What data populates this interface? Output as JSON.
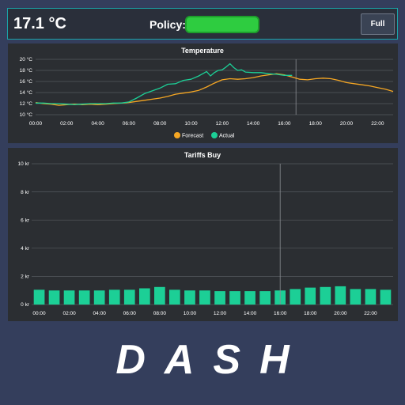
{
  "header": {
    "temperature": "17.1 °C",
    "policy_label": "Policy:",
    "policy_color": "#2ecc40",
    "full_button": "Full"
  },
  "footer": {
    "logo_text": "DASH"
  },
  "chart_data": [
    {
      "type": "line",
      "title": "Temperature",
      "xlabel": "",
      "ylabel": "",
      "x_range": [
        0,
        23
      ],
      "ylim": [
        10,
        20
      ],
      "y_ticks": [
        10,
        12,
        14,
        16,
        18,
        20
      ],
      "y_tick_labels": [
        "10 °C",
        "12 °C",
        "14 °C",
        "16 °C",
        "18 °C",
        "20 °C"
      ],
      "x_ticks": [
        0,
        2,
        4,
        6,
        8,
        10,
        12,
        14,
        16,
        18,
        20,
        22
      ],
      "x_tick_labels": [
        "00:00",
        "02:00",
        "04:00",
        "06:00",
        "08:00",
        "10:00",
        "12:00",
        "14:00",
        "16:00",
        "18:00",
        "20:00",
        "22:00"
      ],
      "now_marker": 16.75,
      "legend": {
        "position": "bottom",
        "entries": [
          "Forecast",
          "Actual"
        ]
      },
      "grid": true,
      "series": [
        {
          "name": "Forecast",
          "color": "#f5a623",
          "x": [
            0,
            0.5,
            1,
            1.5,
            2,
            2.5,
            3,
            3.5,
            4,
            4.5,
            5,
            5.5,
            6,
            6.5,
            7,
            7.5,
            8,
            8.5,
            9,
            9.5,
            10,
            10.5,
            11,
            11.5,
            12,
            12.5,
            13,
            13.5,
            14,
            14.5,
            15,
            15.5,
            16,
            16.5,
            17,
            17.5,
            18,
            18.5,
            19,
            19.5,
            20,
            20.5,
            21,
            21.5,
            22,
            22.5,
            23
          ],
          "y": [
            12.2,
            12.0,
            11.9,
            11.7,
            11.8,
            11.9,
            11.8,
            11.9,
            11.8,
            11.9,
            12.0,
            12.1,
            12.2,
            12.4,
            12.6,
            12.8,
            13.0,
            13.3,
            13.7,
            13.9,
            14.1,
            14.4,
            15.0,
            15.7,
            16.3,
            16.5,
            16.4,
            16.5,
            16.7,
            17.0,
            17.2,
            17.4,
            17.2,
            16.8,
            16.4,
            16.3,
            16.5,
            16.6,
            16.5,
            16.2,
            15.8,
            15.6,
            15.4,
            15.2,
            14.9,
            14.6,
            14.2
          ]
        },
        {
          "name": "Actual",
          "color": "#1ccf96",
          "x": [
            0,
            0.5,
            1,
            1.5,
            2,
            2.5,
            3,
            3.5,
            4,
            4.5,
            5,
            5.5,
            6,
            6.5,
            7,
            7.5,
            8,
            8.5,
            9,
            9.5,
            10,
            10.5,
            11,
            11.25,
            11.5,
            11.75,
            12,
            12.25,
            12.5,
            12.75,
            13,
            13.25,
            13.5,
            14,
            14.5,
            15,
            15.5,
            16,
            16.5
          ],
          "y": [
            12.1,
            12.1,
            12.0,
            12.0,
            11.9,
            11.8,
            11.9,
            12.0,
            12.0,
            12.0,
            12.1,
            12.1,
            12.3,
            13.0,
            13.8,
            14.3,
            14.8,
            15.5,
            15.6,
            16.2,
            16.4,
            17.0,
            17.8,
            17.0,
            17.6,
            18.0,
            18.1,
            18.6,
            19.2,
            18.5,
            18.0,
            18.1,
            17.7,
            17.6,
            17.6,
            17.4,
            17.3,
            17.1,
            17.1
          ]
        }
      ]
    },
    {
      "type": "bar",
      "title": "Tariffs Buy",
      "xlabel": "",
      "ylabel": "",
      "ylim": [
        0,
        10
      ],
      "y_ticks": [
        0,
        2,
        4,
        6,
        8,
        10
      ],
      "y_tick_labels": [
        "0 kr",
        "2 kr",
        "4 kr",
        "6 kr",
        "8 kr",
        "10 kr"
      ],
      "x_ticks": [
        0,
        2,
        4,
        6,
        8,
        10,
        12,
        14,
        16,
        18,
        20,
        22
      ],
      "x_tick_labels": [
        "00:00",
        "02:00",
        "04:00",
        "06:00",
        "08:00",
        "10:00",
        "12:00",
        "14:00",
        "16:00",
        "18:00",
        "20:00",
        "22:00"
      ],
      "now_marker": 16,
      "grid": true,
      "color": "#1ccf96",
      "categories": [
        0,
        1,
        2,
        3,
        4,
        5,
        6,
        7,
        8,
        9,
        10,
        11,
        12,
        13,
        14,
        15,
        16,
        17,
        18,
        19,
        20,
        21,
        22,
        23
      ],
      "values": [
        1.05,
        1.0,
        1.0,
        1.0,
        1.0,
        1.05,
        1.05,
        1.15,
        1.25,
        1.05,
        1.0,
        1.0,
        0.95,
        0.95,
        0.95,
        0.95,
        1.0,
        1.1,
        1.2,
        1.25,
        1.3,
        1.1,
        1.1,
        1.05
      ]
    }
  ]
}
